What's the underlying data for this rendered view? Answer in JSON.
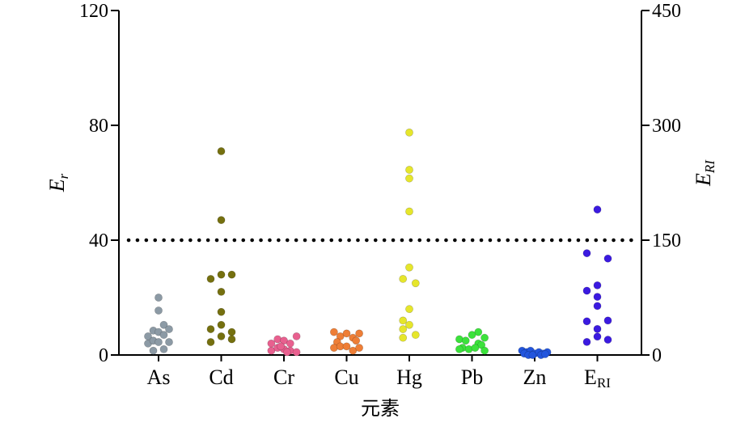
{
  "chart_data": {
    "type": "scatter",
    "xlabel": "元素",
    "ylabel_left": "E",
    "ylabel_left_sub": "r",
    "ylabel_right": "E",
    "ylabel_right_sub": "RI",
    "ylim_left": [
      0,
      120
    ],
    "ylim_right": [
      0,
      450
    ],
    "yticks_left": [
      "0",
      "40",
      "80",
      "120"
    ],
    "yticks_right": [
      "0",
      "150",
      "300",
      "450"
    ],
    "threshold_left": 40,
    "grid": false,
    "categories": [
      {
        "label": "As",
        "sub": "",
        "color": "#8c9aa5",
        "axis": "left",
        "points": [
          [
            -0.5,
            6.5
          ],
          [
            -0.5,
            4
          ],
          [
            -0.25,
            8.5
          ],
          [
            -0.25,
            5
          ],
          [
            -0.25,
            1.5
          ],
          [
            0,
            20
          ],
          [
            0,
            15.5
          ],
          [
            0,
            8
          ],
          [
            0,
            4.5
          ],
          [
            0.25,
            10.5
          ],
          [
            0.25,
            7
          ],
          [
            0.25,
            2
          ],
          [
            0.5,
            9
          ],
          [
            0.5,
            4.5
          ]
        ]
      },
      {
        "label": "Cd",
        "sub": "",
        "color": "#75700f",
        "axis": "left",
        "points": [
          [
            0,
            71
          ],
          [
            0,
            47
          ],
          [
            -0.5,
            26.5
          ],
          [
            0,
            28
          ],
          [
            0.5,
            28
          ],
          [
            0,
            22
          ],
          [
            0,
            15
          ],
          [
            -0.5,
            9
          ],
          [
            0,
            10.5
          ],
          [
            0.5,
            8
          ],
          [
            -0.5,
            4.5
          ],
          [
            0,
            6.5
          ],
          [
            0.5,
            5.5
          ]
        ]
      },
      {
        "label": "Cr",
        "sub": "",
        "color": "#e8608f",
        "axis": "left",
        "points": [
          [
            -0.6,
            4
          ],
          [
            -0.3,
            5.5
          ],
          [
            0,
            5
          ],
          [
            0.3,
            4
          ],
          [
            0.6,
            6.5
          ],
          [
            -0.6,
            1.5
          ],
          [
            -0.3,
            2.5
          ],
          [
            0,
            2
          ],
          [
            0.3,
            1.5
          ],
          [
            0.6,
            1
          ],
          [
            -0.15,
            3
          ],
          [
            0.15,
            1
          ]
        ]
      },
      {
        "label": "Cu",
        "sub": "",
        "color": "#ee7e36",
        "axis": "left",
        "points": [
          [
            -0.6,
            8
          ],
          [
            -0.3,
            6.5
          ],
          [
            0,
            7.5
          ],
          [
            0.3,
            6
          ],
          [
            0.6,
            7.5
          ],
          [
            -0.45,
            4.5
          ],
          [
            0.45,
            5
          ],
          [
            -0.6,
            2.5
          ],
          [
            -0.3,
            3
          ],
          [
            0,
            3
          ],
          [
            0.3,
            1.5
          ],
          [
            0.6,
            2.5
          ]
        ]
      },
      {
        "label": "Hg",
        "sub": "",
        "color": "#e6e62b",
        "axis": "left",
        "points": [
          [
            0,
            77.5
          ],
          [
            0,
            64.5
          ],
          [
            0,
            61.5
          ],
          [
            0,
            50
          ],
          [
            0,
            30.5
          ],
          [
            -0.3,
            26.5
          ],
          [
            0.3,
            25
          ],
          [
            0,
            16
          ],
          [
            -0.3,
            12
          ],
          [
            0,
            10.5
          ],
          [
            -0.3,
            9
          ],
          [
            0.3,
            7
          ],
          [
            -0.3,
            6
          ]
        ]
      },
      {
        "label": "Pb",
        "sub": "",
        "color": "#3be23b",
        "axis": "left",
        "points": [
          [
            0.3,
            8
          ],
          [
            0,
            7
          ],
          [
            -0.6,
            5.5
          ],
          [
            0.6,
            6
          ],
          [
            -0.3,
            5
          ],
          [
            0.3,
            4
          ],
          [
            -0.45,
            2.5
          ],
          [
            0.45,
            3.5
          ],
          [
            -0.6,
            2
          ],
          [
            -0.15,
            2
          ],
          [
            0.15,
            2.5
          ],
          [
            0.6,
            1.5
          ]
        ]
      },
      {
        "label": "Zn",
        "sub": "",
        "color": "#2255dd",
        "axis": "left",
        "points": [
          [
            -0.6,
            1.5
          ],
          [
            -0.4,
            1
          ],
          [
            -0.2,
            1.5
          ],
          [
            0,
            0.5
          ],
          [
            0.2,
            1
          ],
          [
            0.4,
            0.5
          ],
          [
            0.6,
            1
          ],
          [
            -0.5,
            0.5
          ],
          [
            -0.3,
            0
          ],
          [
            0.3,
            0
          ],
          [
            0.5,
            0.3
          ],
          [
            -0.1,
            0
          ]
        ]
      },
      {
        "label": "E",
        "sub": "RI",
        "color": "#3b1ae0",
        "axis": "right",
        "points": [
          [
            0,
            190
          ],
          [
            -0.5,
            133
          ],
          [
            0.5,
            126
          ],
          [
            0,
            91
          ],
          [
            -0.5,
            84
          ],
          [
            0,
            76
          ],
          [
            0,
            64
          ],
          [
            -0.5,
            44
          ],
          [
            0.5,
            45
          ],
          [
            0,
            34
          ],
          [
            0,
            24
          ],
          [
            0.5,
            20
          ],
          [
            -0.5,
            17
          ]
        ]
      }
    ]
  }
}
